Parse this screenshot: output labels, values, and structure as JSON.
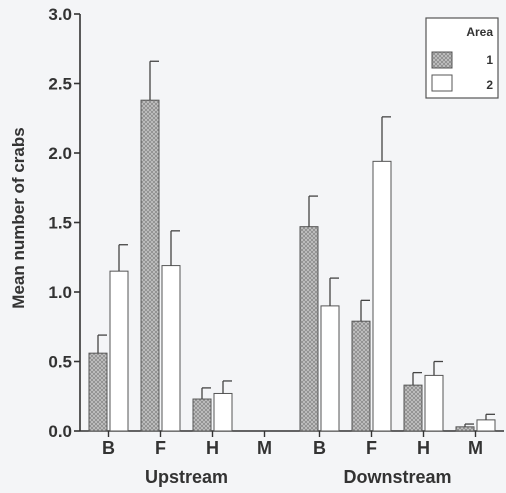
{
  "chart_data": {
    "type": "bar",
    "title": "",
    "xlabel": "",
    "ylabel": "Mean number of crabs",
    "ylim": [
      0,
      3.0
    ],
    "yticks": [
      "0.0",
      "0.5",
      "1.0",
      "1.5",
      "2.0",
      "2.5",
      "3.0"
    ],
    "grid": false,
    "legend": {
      "title": "Area",
      "placement": "top-right",
      "entries": [
        "1",
        "2"
      ]
    },
    "groups": [
      {
        "name": "Upstream",
        "categories": [
          "B",
          "F",
          "H",
          "M"
        ],
        "series": [
          {
            "name": "1",
            "values": [
              0.56,
              2.38,
              0.23,
              0
            ],
            "errors": [
              0.13,
              0.28,
              0.08,
              0
            ]
          },
          {
            "name": "2",
            "values": [
              1.15,
              1.19,
              0.27,
              0
            ],
            "errors": [
              0.19,
              0.25,
              0.09,
              0
            ]
          }
        ]
      },
      {
        "name": "Downstream",
        "categories": [
          "B",
          "F",
          "H",
          "M"
        ],
        "series": [
          {
            "name": "1",
            "values": [
              1.47,
              0.79,
              0.33,
              0.03
            ],
            "errors": [
              0.22,
              0.15,
              0.09,
              0.02
            ]
          },
          {
            "name": "2",
            "values": [
              0.9,
              1.94,
              0.4,
              0.08
            ],
            "errors": [
              0.2,
              0.32,
              0.1,
              0.04
            ]
          }
        ]
      }
    ],
    "series_colors": {
      "1": "#c8c8c8",
      "2": "#ffffff"
    }
  }
}
